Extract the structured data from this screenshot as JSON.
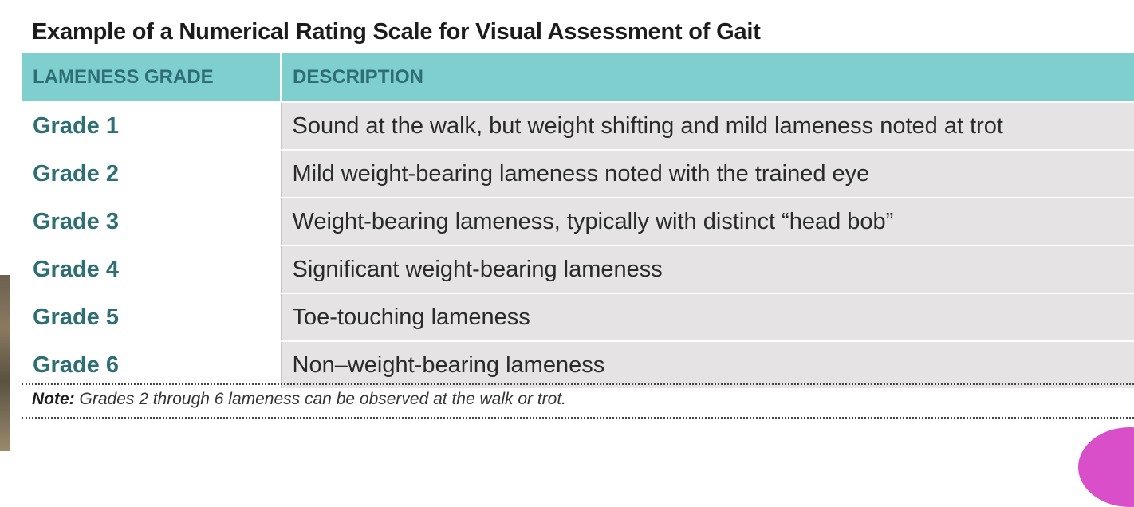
{
  "title": "Example of a Numerical Rating Scale for Visual Assessment of Gait",
  "table": {
    "headers": [
      "LAMENESS GRADE",
      "DESCRIPTION"
    ],
    "rows": [
      {
        "grade": "Grade 1",
        "description": "Sound at the walk, but weight shifting and mild lameness noted at trot"
      },
      {
        "grade": "Grade 2",
        "description": "Mild weight-bearing lameness noted with the trained eye"
      },
      {
        "grade": "Grade 3",
        "description": "Weight-bearing lameness, typically with distinct “head bob”"
      },
      {
        "grade": "Grade 4",
        "description": "Significant weight-bearing lameness"
      },
      {
        "grade": "Grade 5",
        "description": "Toe-touching lameness"
      },
      {
        "grade": "Grade 6",
        "description": "Non–weight-bearing lameness"
      }
    ]
  },
  "note": {
    "label": "Note:",
    "text": " Grades 2 through 6 lameness can be observed at the walk or trot."
  },
  "colors": {
    "header_bg": "#7ecfce",
    "header_text": "#2d6f74",
    "grade_text": "#2d6f74",
    "desc_bg": "#e5e3e3"
  }
}
